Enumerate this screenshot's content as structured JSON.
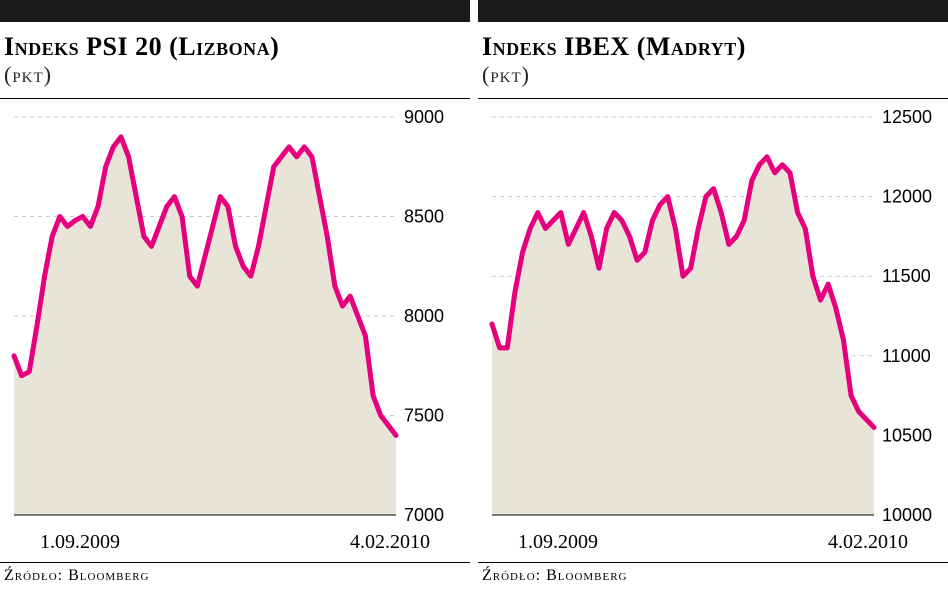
{
  "charts": [
    {
      "title": "Indeks PSI 20 (Lizbona)",
      "subtitle": "(pkt)",
      "source": "Źródło: Bloomberg",
      "line_color": "#e6007e",
      "area_color": "#e8e4d8",
      "grid_color": "#cccccc",
      "background_color": "#ffffff",
      "title_fontsize": 26,
      "subtitle_fontsize": 22,
      "ylim": [
        7000,
        9000
      ],
      "ytick_step": 500,
      "y_ticks": [
        7000,
        7500,
        8000,
        8500,
        9000
      ],
      "x_labels": [
        "1.09.2009",
        "4.02.2010"
      ],
      "line_width": 5,
      "series_x": [
        0,
        0.02,
        0.04,
        0.06,
        0.08,
        0.1,
        0.12,
        0.14,
        0.16,
        0.18,
        0.2,
        0.22,
        0.24,
        0.26,
        0.28,
        0.3,
        0.32,
        0.34,
        0.36,
        0.38,
        0.4,
        0.42,
        0.44,
        0.46,
        0.48,
        0.5,
        0.52,
        0.54,
        0.56,
        0.58,
        0.6,
        0.62,
        0.64,
        0.66,
        0.68,
        0.7,
        0.72,
        0.74,
        0.76,
        0.78,
        0.8,
        0.82,
        0.84,
        0.86,
        0.88,
        0.9,
        0.92,
        0.94,
        0.96,
        0.98,
        1.0
      ],
      "series_y": [
        7800,
        7700,
        7720,
        7950,
        8200,
        8400,
        8500,
        8450,
        8480,
        8500,
        8450,
        8550,
        8750,
        8850,
        8900,
        8800,
        8600,
        8400,
        8350,
        8450,
        8550,
        8600,
        8500,
        8200,
        8150,
        8300,
        8450,
        8600,
        8550,
        8350,
        8250,
        8200,
        8350,
        8550,
        8750,
        8800,
        8850,
        8800,
        8850,
        8800,
        8600,
        8400,
        8150,
        8050,
        8100,
        8000,
        7900,
        7600,
        7500,
        7450,
        7400
      ]
    },
    {
      "title": "Indeks IBEX (Madryt)",
      "subtitle": "(pkt)",
      "source": "Źródło: Bloomberg",
      "line_color": "#e6007e",
      "area_color": "#e8e4d8",
      "grid_color": "#cccccc",
      "background_color": "#ffffff",
      "title_fontsize": 26,
      "subtitle_fontsize": 22,
      "ylim": [
        10000,
        12500
      ],
      "ytick_step": 500,
      "y_ticks": [
        10000,
        10500,
        11000,
        11500,
        12000,
        12500
      ],
      "x_labels": [
        "1.09.2009",
        "4.02.2010"
      ],
      "line_width": 5,
      "series_x": [
        0,
        0.02,
        0.04,
        0.06,
        0.08,
        0.1,
        0.12,
        0.14,
        0.16,
        0.18,
        0.2,
        0.22,
        0.24,
        0.26,
        0.28,
        0.3,
        0.32,
        0.34,
        0.36,
        0.38,
        0.4,
        0.42,
        0.44,
        0.46,
        0.48,
        0.5,
        0.52,
        0.54,
        0.56,
        0.58,
        0.6,
        0.62,
        0.64,
        0.66,
        0.68,
        0.7,
        0.72,
        0.74,
        0.76,
        0.78,
        0.8,
        0.82,
        0.84,
        0.86,
        0.88,
        0.9,
        0.92,
        0.94,
        0.96,
        0.98,
        1.0
      ],
      "series_y": [
        11200,
        11050,
        11050,
        11400,
        11650,
        11800,
        11900,
        11800,
        11850,
        11900,
        11700,
        11800,
        11900,
        11750,
        11550,
        11800,
        11900,
        11850,
        11750,
        11600,
        11650,
        11850,
        11950,
        12000,
        11800,
        11500,
        11550,
        11800,
        12000,
        12050,
        11900,
        11700,
        11750,
        11850,
        12100,
        12200,
        12250,
        12150,
        12200,
        12150,
        11900,
        11800,
        11500,
        11350,
        11450,
        11300,
        11100,
        10750,
        10650,
        10600,
        10550
      ]
    }
  ]
}
